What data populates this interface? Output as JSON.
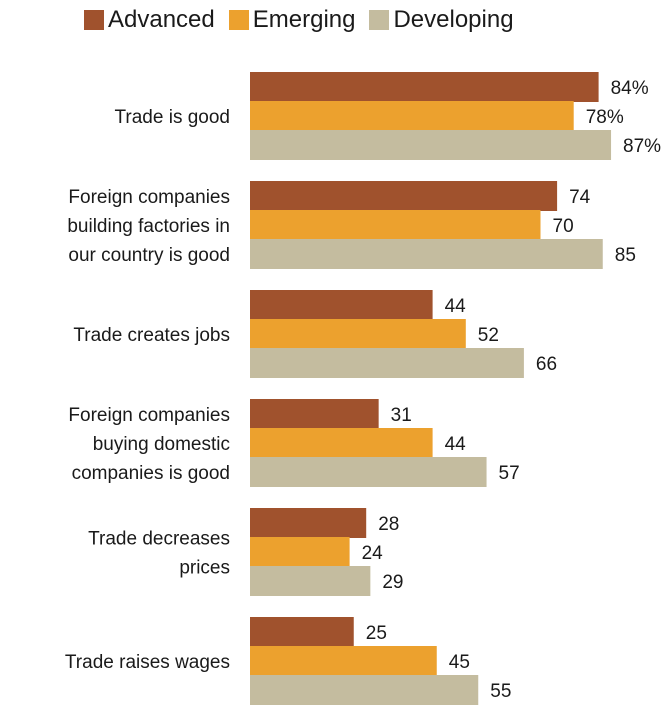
{
  "chart_data": {
    "type": "bar",
    "orientation": "horizontal",
    "title": "",
    "xlabel": "",
    "ylabel": "",
    "grid": false,
    "legend_position": "top",
    "categories": [
      "Trade is good",
      "Foreign companies building factories in our country is good",
      "Trade creates jobs",
      "Foreign companies buying domestic companies is good",
      "Trade decreases prices",
      "Trade raises wages"
    ],
    "category_lines": [
      [
        "Trade is good"
      ],
      [
        "Foreign companies",
        "building factories in",
        "our country is good"
      ],
      [
        "Trade creates jobs"
      ],
      [
        "Foreign companies",
        "buying domestic",
        "companies is good"
      ],
      [
        "Trade decreases",
        "prices"
      ],
      [
        "Trade raises wages"
      ]
    ],
    "series": [
      {
        "name": "Advanced",
        "color": "#a0522d",
        "values": [
          84,
          74,
          44,
          31,
          28,
          25
        ]
      },
      {
        "name": "Emerging",
        "color": "#eca12e",
        "values": [
          78,
          70,
          52,
          44,
          24,
          45
        ]
      },
      {
        "name": "Developing",
        "color": "#c4bc9f",
        "values": [
          87,
          85,
          66,
          57,
          29,
          55
        ]
      }
    ],
    "value_labels": [
      [
        "84%",
        "74",
        "44",
        "31",
        "28",
        "25"
      ],
      [
        "78%",
        "70",
        "52",
        "44",
        "24",
        "45"
      ],
      [
        "87%",
        "85",
        "66",
        "57",
        "29",
        "55"
      ]
    ],
    "xlim": [
      0,
      100
    ]
  }
}
